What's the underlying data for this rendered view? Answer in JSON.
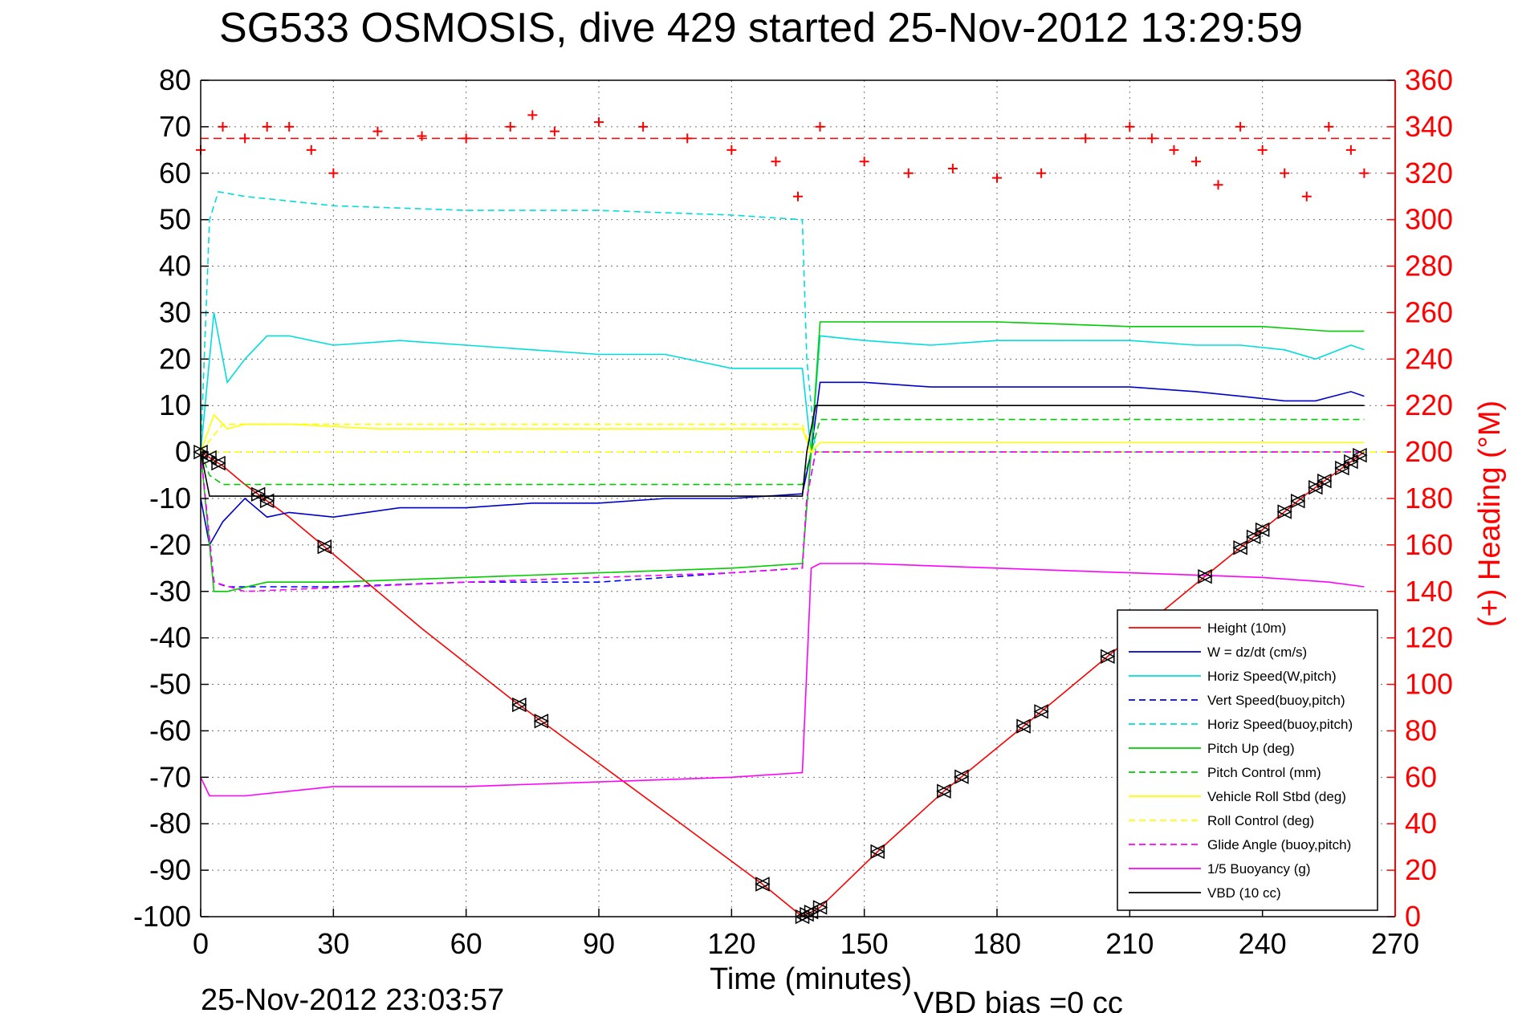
{
  "chart_data": {
    "type": "line",
    "title": "SG533 OSMOSIS, dive 429 started 25-Nov-2012 13:29:59",
    "xlabel": "Time (minutes)",
    "ylabel_right": "(+) Heading (°M)",
    "xlim": [
      0,
      270
    ],
    "ylim_left": [
      -100,
      80
    ],
    "ylim_right": [
      0,
      360
    ],
    "x_ticks": [
      0,
      30,
      60,
      90,
      120,
      150,
      180,
      210,
      240,
      270
    ],
    "y_ticks_left": [
      80,
      70,
      60,
      50,
      40,
      30,
      20,
      10,
      0,
      -10,
      -20,
      -30,
      -40,
      -50,
      -60,
      -70,
      -80,
      -90,
      -100
    ],
    "y_ticks_right": [
      360,
      340,
      320,
      300,
      280,
      260,
      240,
      220,
      200,
      180,
      160,
      140,
      120,
      100,
      80,
      60,
      40,
      20,
      0
    ],
    "grid": true,
    "legend_position": "bottom-right",
    "footer_left": "25-Nov-2012 23:03:57",
    "footer_right": "VBD bias =0 cc",
    "series": [
      {
        "name": "Height (10m)",
        "color": "#ff0000",
        "style": "solid",
        "x": [
          0,
          5,
          10,
          20,
          30,
          50,
          70,
          90,
          110,
          127,
          136,
          140,
          153,
          168,
          186,
          205,
          228,
          250,
          263
        ],
        "y": [
          0,
          -3,
          -7,
          -14,
          -22,
          -38,
          -53,
          -67,
          -81,
          -93,
          -100,
          -98,
          -86,
          -73,
          -59,
          -44,
          -26,
          -9,
          0
        ]
      },
      {
        "name": "W = dz/dt (cm/s)",
        "color": "#0000cc",
        "style": "solid",
        "x": [
          0,
          2,
          5,
          10,
          15,
          20,
          30,
          45,
          60,
          75,
          90,
          105,
          120,
          136,
          138,
          140,
          150,
          165,
          180,
          195,
          210,
          225,
          235,
          245,
          252,
          260,
          263
        ],
        "y": [
          -10,
          -20,
          -15,
          -10,
          -14,
          -13,
          -14,
          -12,
          -12,
          -11,
          -11,
          -10,
          -10,
          -9,
          0,
          15,
          15,
          14,
          14,
          14,
          14,
          13,
          12,
          11,
          11,
          13,
          12
        ]
      },
      {
        "name": "Horiz Speed(W,pitch)",
        "color": "#00dddd",
        "style": "solid",
        "x": [
          0,
          3,
          6,
          10,
          15,
          20,
          30,
          45,
          60,
          75,
          90,
          105,
          120,
          136,
          138,
          140,
          150,
          165,
          180,
          195,
          210,
          225,
          235,
          245,
          252,
          260,
          263
        ],
        "y": [
          0,
          30,
          15,
          20,
          25,
          25,
          23,
          24,
          23,
          22,
          21,
          21,
          18,
          18,
          0,
          25,
          24,
          23,
          24,
          24,
          24,
          23,
          23,
          22,
          20,
          23,
          22
        ]
      },
      {
        "name": "Vert Speed(buoy,pitch)",
        "color": "#0000ff",
        "style": "dashed",
        "x": [
          0,
          3,
          6,
          10,
          20,
          30,
          60,
          90,
          120,
          136,
          137,
          139,
          263
        ],
        "y": [
          0,
          -28,
          -29,
          -29,
          -29,
          -29,
          -28,
          -28,
          -26,
          -25,
          -10,
          0,
          0
        ]
      },
      {
        "name": "Horiz Speed(buoy,pitch)",
        "color": "#00dddd",
        "style": "dashed",
        "x": [
          0,
          2,
          4,
          10,
          20,
          30,
          60,
          90,
          120,
          136,
          137,
          139,
          263
        ],
        "y": [
          0,
          50,
          56,
          55,
          54,
          53,
          52,
          52,
          51,
          50,
          20,
          0,
          0
        ]
      },
      {
        "name": "Pitch Up (deg)",
        "color": "#00cc00",
        "style": "solid",
        "x": [
          0,
          3,
          6,
          15,
          30,
          60,
          90,
          120,
          136,
          138,
          140,
          150,
          180,
          210,
          240,
          255,
          263
        ],
        "y": [
          0,
          -30,
          -30,
          -28,
          -28,
          -27,
          -26,
          -25,
          -24,
          0,
          28,
          28,
          28,
          27,
          27,
          26,
          26
        ]
      },
      {
        "name": "Pitch Control (mm)",
        "color": "#00cc00",
        "style": "dashed",
        "x": [
          0,
          2,
          5,
          136,
          138,
          140,
          263
        ],
        "y": [
          0,
          -5,
          -7,
          -7,
          0,
          7,
          7
        ]
      },
      {
        "name": "Vehicle Roll Stbd (deg)",
        "color": "#ffff00",
        "style": "solid",
        "x": [
          0,
          3,
          6,
          10,
          20,
          40,
          60,
          90,
          120,
          136,
          138,
          140,
          170,
          200,
          230,
          250,
          263
        ],
        "y": [
          0,
          8,
          5,
          6,
          6,
          5,
          5,
          5,
          5,
          5,
          0,
          2,
          2,
          2,
          2,
          2,
          2
        ]
      },
      {
        "name": "Roll Control (deg)",
        "color": "#ffff00",
        "style": "dashed",
        "x": [
          0,
          5,
          10,
          136,
          138,
          140,
          263
        ],
        "y": [
          0,
          6,
          6,
          6,
          0,
          0,
          0
        ]
      },
      {
        "name": "Glide Angle (buoy,pitch)",
        "color": "#ff00ff",
        "style": "dashed",
        "x": [
          0,
          3,
          10,
          60,
          120,
          136,
          137,
          139,
          263
        ],
        "y": [
          0,
          -28,
          -30,
          -28,
          -26,
          -25,
          -10,
          0,
          0
        ]
      },
      {
        "name": "1/5 Buoyancy (g)",
        "color": "#ff00ff",
        "style": "solid",
        "x": [
          0,
          2,
          5,
          10,
          30,
          60,
          90,
          120,
          136,
          138,
          140,
          150,
          180,
          210,
          240,
          255,
          263
        ],
        "y": [
          -70,
          -74,
          -74,
          -74,
          -72,
          -72,
          -71,
          -70,
          -69,
          -25,
          -24,
          -24,
          -25,
          -26,
          -27,
          -28,
          -29
        ]
      },
      {
        "name": "VBD (10 cc)",
        "color": "#000000",
        "style": "solid",
        "x": [
          0,
          2,
          136,
          137,
          139,
          140,
          263
        ],
        "y": [
          0,
          -9.5,
          -9.5,
          0,
          10,
          10,
          10
        ]
      },
      {
        "name": "Heading",
        "color": "#ff0000",
        "style": "plus",
        "axis": "right",
        "x": [
          0,
          5,
          10,
          15,
          20,
          25,
          30,
          40,
          50,
          60,
          70,
          75,
          80,
          90,
          100,
          110,
          120,
          130,
          135,
          140,
          150,
          160,
          170,
          180,
          190,
          200,
          210,
          215,
          220,
          225,
          230,
          235,
          240,
          245,
          250,
          255,
          260,
          263
        ],
        "y": [
          330,
          340,
          335,
          340,
          340,
          330,
          320,
          338,
          336,
          335,
          340,
          345,
          338,
          342,
          340,
          335,
          330,
          325,
          310,
          340,
          325,
          320,
          322,
          318,
          320,
          335,
          340,
          335,
          330,
          325,
          315,
          340,
          330,
          320,
          310,
          340,
          330,
          320
        ]
      }
    ],
    "reference_lines": [
      {
        "axis": "right",
        "value": 335,
        "color": "#ff0000",
        "style": "dashed"
      }
    ],
    "triangle_markers_x": [
      0,
      2,
      4,
      13,
      15,
      28,
      72,
      77,
      127,
      136,
      137,
      138,
      140,
      153,
      168,
      172,
      186,
      190,
      205,
      227,
      235,
      238,
      240,
      245,
      248,
      252,
      254,
      258,
      260,
      262
    ]
  }
}
